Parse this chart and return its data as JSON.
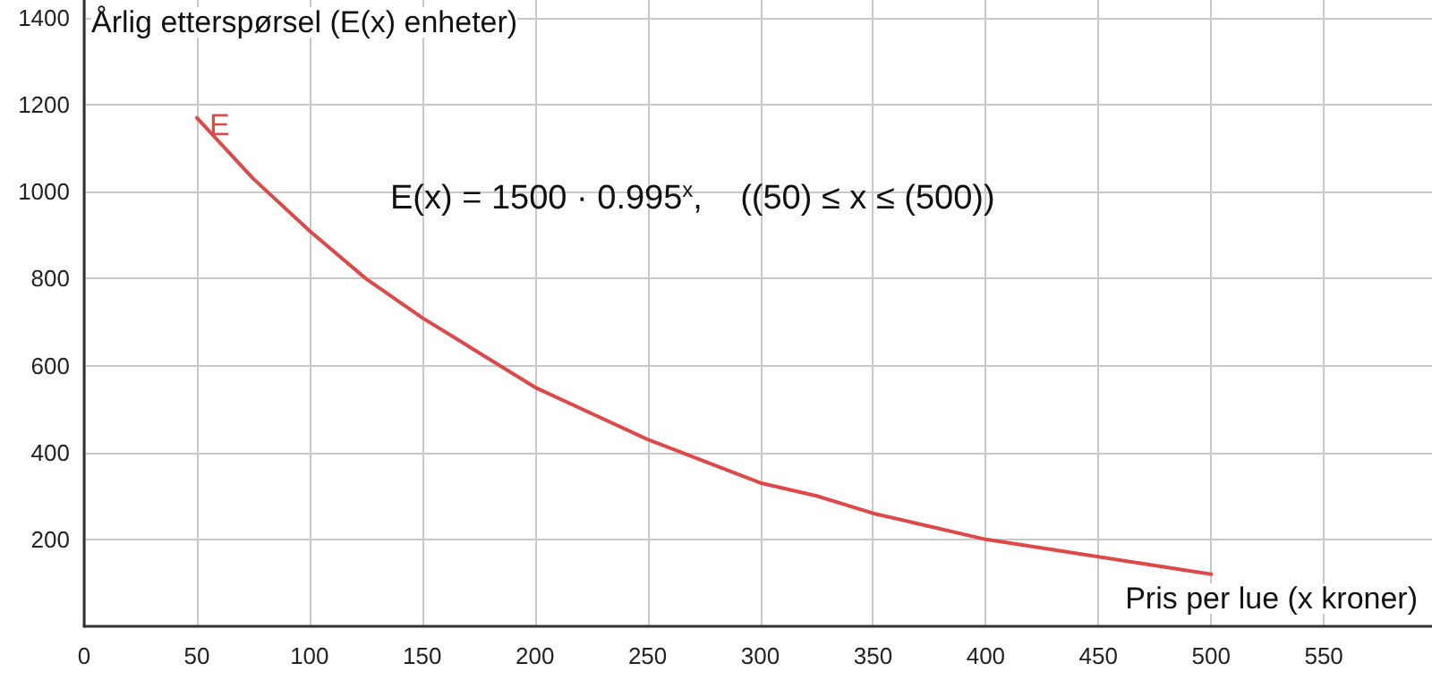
{
  "chart_data": {
    "type": "line",
    "xlabel": "Pris per lue (x kroner)",
    "ylabel": "Årlig etterspørsel (E(x) enheter)",
    "annotations": [
      "E(x) = 1500 · 0.995$^{x}$,    ((50) ≤ x ≤ (500))"
    ],
    "x": [
      50,
      75,
      100,
      125,
      150,
      175,
      200,
      225,
      250,
      275,
      300,
      325,
      350,
      375,
      400,
      425,
      450,
      475,
      500
    ],
    "series": [
      {
        "name": "E",
        "color": "#e04848",
        "values": [
          1170,
          1030,
          910,
          800,
          710,
          630,
          550,
          490,
          430,
          380,
          330,
          300,
          260,
          230,
          200,
          180,
          160,
          140,
          120
        ]
      }
    ],
    "xlim": [
      0,
      598
    ],
    "ylim": [
      0,
      1441
    ],
    "xticks": [
      0,
      50,
      100,
      150,
      200,
      250,
      300,
      350,
      400,
      450,
      500,
      550
    ],
    "yticks": [
      200,
      400,
      600,
      800,
      1000,
      1200,
      1400
    ],
    "grid": true,
    "legend": false,
    "marker": "none",
    "line_style": "solid"
  }
}
